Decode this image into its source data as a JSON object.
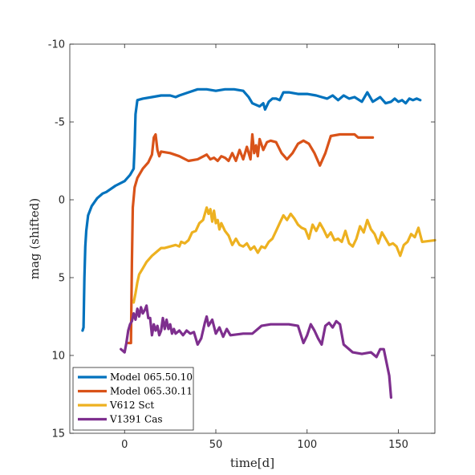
{
  "chart_data": {
    "type": "line",
    "xlabel": "time[d]",
    "ylabel": "mag (shifted)",
    "xlim": [
      -30,
      170
    ],
    "ylim": [
      -10,
      15
    ],
    "y_reversed": true,
    "x_ticks": [
      0,
      50,
      100,
      150
    ],
    "y_ticks": [
      -10,
      -5,
      0,
      5,
      10,
      15
    ],
    "grid": false,
    "legend_position": "bottom-left",
    "series": [
      {
        "name": "Model 065.50.10",
        "color": "#0072BD",
        "points": [
          [
            -23,
            8.4
          ],
          [
            -22.5,
            8.2
          ],
          [
            -22,
            5.0
          ],
          [
            -21.5,
            3.0
          ],
          [
            -21,
            2.0
          ],
          [
            -20,
            1.0
          ],
          [
            -18,
            0.4
          ],
          [
            -15,
            -0.1
          ],
          [
            -12,
            -0.4
          ],
          [
            -10,
            -0.5
          ],
          [
            -5,
            -0.9
          ],
          [
            0,
            -1.2
          ],
          [
            3,
            -1.6
          ],
          [
            5,
            -2.0
          ],
          [
            5.5,
            -3.5
          ],
          [
            6,
            -5.5
          ],
          [
            7,
            -6.4
          ],
          [
            10,
            -6.5
          ],
          [
            15,
            -6.6
          ],
          [
            20,
            -6.7
          ],
          [
            25,
            -6.7
          ],
          [
            28,
            -6.6
          ],
          [
            30,
            -6.7
          ],
          [
            35,
            -6.9
          ],
          [
            40,
            -7.1
          ],
          [
            45,
            -7.1
          ],
          [
            50,
            -7.0
          ],
          [
            55,
            -7.1
          ],
          [
            60,
            -7.1
          ],
          [
            65,
            -7.0
          ],
          [
            68,
            -6.6
          ],
          [
            70,
            -6.2
          ],
          [
            72,
            -6.1
          ],
          [
            74,
            -6.0
          ],
          [
            76,
            -6.2
          ],
          [
            77,
            -5.8
          ],
          [
            79,
            -6.3
          ],
          [
            81,
            -6.5
          ],
          [
            83,
            -6.5
          ],
          [
            85,
            -6.4
          ],
          [
            87,
            -6.9
          ],
          [
            90,
            -6.9
          ],
          [
            95,
            -6.8
          ],
          [
            100,
            -6.8
          ],
          [
            105,
            -6.7
          ],
          [
            108,
            -6.6
          ],
          [
            111,
            -6.5
          ],
          [
            114,
            -6.7
          ],
          [
            117,
            -6.4
          ],
          [
            120,
            -6.7
          ],
          [
            123,
            -6.5
          ],
          [
            126,
            -6.6
          ],
          [
            130,
            -6.3
          ],
          [
            133,
            -6.9
          ],
          [
            136,
            -6.3
          ],
          [
            140,
            -6.6
          ],
          [
            143,
            -6.2
          ],
          [
            146,
            -6.3
          ],
          [
            148,
            -6.5
          ],
          [
            150,
            -6.3
          ],
          [
            152,
            -6.4
          ],
          [
            154,
            -6.2
          ],
          [
            156,
            -6.5
          ],
          [
            158,
            -6.4
          ],
          [
            160,
            -6.5
          ],
          [
            162,
            -6.4
          ]
        ]
      },
      {
        "name": "Model 065.30.11",
        "color": "#D95319",
        "points": [
          [
            2,
            9.2
          ],
          [
            3.5,
            9.2
          ],
          [
            4,
            4.0
          ],
          [
            4.5,
            0.5
          ],
          [
            5.5,
            -0.8
          ],
          [
            7,
            -1.4
          ],
          [
            10,
            -2.0
          ],
          [
            13,
            -2.4
          ],
          [
            15,
            -2.9
          ],
          [
            16,
            -4.0
          ],
          [
            17,
            -4.2
          ],
          [
            18,
            -3.2
          ],
          [
            19,
            -2.8
          ],
          [
            20,
            -3.1
          ],
          [
            25,
            -3.0
          ],
          [
            30,
            -2.8
          ],
          [
            35,
            -2.5
          ],
          [
            40,
            -2.6
          ],
          [
            45,
            -2.9
          ],
          [
            47,
            -2.6
          ],
          [
            49,
            -2.7
          ],
          [
            51,
            -2.5
          ],
          [
            53,
            -2.8
          ],
          [
            55,
            -2.7
          ],
          [
            57,
            -2.5
          ],
          [
            59,
            -3.0
          ],
          [
            61,
            -2.5
          ],
          [
            63,
            -3.2
          ],
          [
            65,
            -2.6
          ],
          [
            67,
            -3.4
          ],
          [
            69,
            -2.6
          ],
          [
            70,
            -4.2
          ],
          [
            71,
            -3.0
          ],
          [
            72,
            -3.5
          ],
          [
            73,
            -2.8
          ],
          [
            74,
            -3.9
          ],
          [
            76,
            -3.2
          ],
          [
            78,
            -3.7
          ],
          [
            80,
            -3.8
          ],
          [
            83,
            -3.7
          ],
          [
            86,
            -3.0
          ],
          [
            89,
            -2.6
          ],
          [
            92,
            -3.0
          ],
          [
            95,
            -3.6
          ],
          [
            98,
            -3.8
          ],
          [
            101,
            -3.6
          ],
          [
            104,
            -3.0
          ],
          [
            107,
            -2.2
          ],
          [
            110,
            -3.0
          ],
          [
            113,
            -4.1
          ],
          [
            118,
            -4.2
          ],
          [
            123,
            -4.2
          ],
          [
            126,
            -4.2
          ],
          [
            128,
            -4.0
          ],
          [
            133,
            -4.0
          ],
          [
            136,
            -4.0
          ]
        ]
      },
      {
        "name": "V612 Sct",
        "color": "#EDB120",
        "points": [
          [
            5,
            6.6
          ],
          [
            6,
            6.0
          ],
          [
            7,
            5.3
          ],
          [
            8,
            4.8
          ],
          [
            10,
            4.4
          ],
          [
            12,
            4.0
          ],
          [
            15,
            3.6
          ],
          [
            18,
            3.3
          ],
          [
            20,
            3.1
          ],
          [
            22,
            3.1
          ],
          [
            25,
            3.0
          ],
          [
            28,
            2.9
          ],
          [
            30,
            3.0
          ],
          [
            31,
            2.7
          ],
          [
            33,
            2.8
          ],
          [
            35,
            2.6
          ],
          [
            37,
            2.1
          ],
          [
            39,
            2.0
          ],
          [
            41,
            1.5
          ],
          [
            43,
            1.3
          ],
          [
            45,
            0.5
          ],
          [
            46,
            0.9
          ],
          [
            47,
            0.6
          ],
          [
            48,
            1.4
          ],
          [
            49,
            0.7
          ],
          [
            50,
            1.5
          ],
          [
            51,
            1.3
          ],
          [
            52,
            1.9
          ],
          [
            53,
            1.5
          ],
          [
            55,
            2.0
          ],
          [
            57,
            2.3
          ],
          [
            59,
            2.9
          ],
          [
            61,
            2.5
          ],
          [
            63,
            2.9
          ],
          [
            65,
            3.0
          ],
          [
            67,
            2.8
          ],
          [
            69,
            3.2
          ],
          [
            71,
            3.0
          ],
          [
            73,
            3.4
          ],
          [
            75,
            3.0
          ],
          [
            77,
            3.1
          ],
          [
            79,
            2.7
          ],
          [
            81,
            2.5
          ],
          [
            83,
            2.0
          ],
          [
            85,
            1.5
          ],
          [
            87,
            1.0
          ],
          [
            89,
            1.3
          ],
          [
            91,
            0.9
          ],
          [
            93,
            1.2
          ],
          [
            95,
            1.6
          ],
          [
            97,
            1.8
          ],
          [
            99,
            1.9
          ],
          [
            101,
            2.5
          ],
          [
            103,
            1.6
          ],
          [
            105,
            2.0
          ],
          [
            107,
            1.5
          ],
          [
            109,
            1.9
          ],
          [
            111,
            2.4
          ],
          [
            113,
            2.1
          ],
          [
            115,
            2.6
          ],
          [
            117,
            2.5
          ],
          [
            119,
            2.7
          ],
          [
            121,
            2.0
          ],
          [
            123,
            2.8
          ],
          [
            125,
            3.0
          ],
          [
            127,
            2.5
          ],
          [
            129,
            1.7
          ],
          [
            131,
            2.1
          ],
          [
            133,
            1.3
          ],
          [
            135,
            1.9
          ],
          [
            137,
            2.2
          ],
          [
            139,
            2.8
          ],
          [
            141,
            2.1
          ],
          [
            143,
            2.5
          ],
          [
            145,
            2.9
          ],
          [
            147,
            2.8
          ],
          [
            149,
            3.0
          ],
          [
            151,
            3.6
          ],
          [
            153,
            2.9
          ],
          [
            155,
            2.7
          ],
          [
            157,
            2.2
          ],
          [
            159,
            2.4
          ],
          [
            161,
            1.8
          ],
          [
            163,
            2.7
          ],
          [
            170,
            2.6
          ]
        ]
      },
      {
        "name": "V1391 Cas",
        "color": "#7E2F8E",
        "points": [
          [
            -2,
            9.6
          ],
          [
            0,
            9.8
          ],
          [
            1,
            9.2
          ],
          [
            2,
            8.4
          ],
          [
            3,
            8.0
          ],
          [
            4,
            7.8
          ],
          [
            5,
            7.3
          ],
          [
            6,
            7.7
          ],
          [
            7,
            7.0
          ],
          [
            8,
            7.5
          ],
          [
            9,
            6.9
          ],
          [
            10,
            7.3
          ],
          [
            11,
            7.1
          ],
          [
            12,
            6.8
          ],
          [
            13,
            7.6
          ],
          [
            14,
            7.6
          ],
          [
            15,
            8.7
          ],
          [
            16,
            8.0
          ],
          [
            17,
            8.4
          ],
          [
            18,
            8.1
          ],
          [
            19,
            8.7
          ],
          [
            20,
            8.4
          ],
          [
            21,
            7.6
          ],
          [
            22,
            8.3
          ],
          [
            23,
            7.7
          ],
          [
            24,
            8.3
          ],
          [
            25,
            8.0
          ],
          [
            26,
            8.6
          ],
          [
            27,
            8.3
          ],
          [
            28,
            8.6
          ],
          [
            30,
            8.4
          ],
          [
            32,
            8.7
          ],
          [
            34,
            8.4
          ],
          [
            36,
            8.6
          ],
          [
            38,
            8.5
          ],
          [
            40,
            9.3
          ],
          [
            42,
            8.9
          ],
          [
            44,
            7.9
          ],
          [
            45,
            7.5
          ],
          [
            46,
            8.1
          ],
          [
            48,
            7.7
          ],
          [
            50,
            8.6
          ],
          [
            52,
            8.2
          ],
          [
            54,
            8.8
          ],
          [
            56,
            8.3
          ],
          [
            58,
            8.7
          ],
          [
            65,
            8.6
          ],
          [
            70,
            8.6
          ],
          [
            75,
            8.1
          ],
          [
            80,
            8.0
          ],
          [
            85,
            8.0
          ],
          [
            90,
            8.0
          ],
          [
            95,
            8.1
          ],
          [
            98,
            9.2
          ],
          [
            100,
            8.7
          ],
          [
            102,
            8.0
          ],
          [
            104,
            8.4
          ],
          [
            106,
            8.9
          ],
          [
            108,
            9.3
          ],
          [
            110,
            8.1
          ],
          [
            112,
            7.9
          ],
          [
            114,
            8.2
          ],
          [
            116,
            7.8
          ],
          [
            118,
            8.0
          ],
          [
            120,
            9.3
          ],
          [
            125,
            9.8
          ],
          [
            130,
            9.9
          ],
          [
            135,
            9.8
          ],
          [
            138,
            10.1
          ],
          [
            140,
            9.6
          ],
          [
            142,
            9.6
          ],
          [
            145,
            11.3
          ],
          [
            146,
            12.7
          ]
        ]
      }
    ]
  }
}
